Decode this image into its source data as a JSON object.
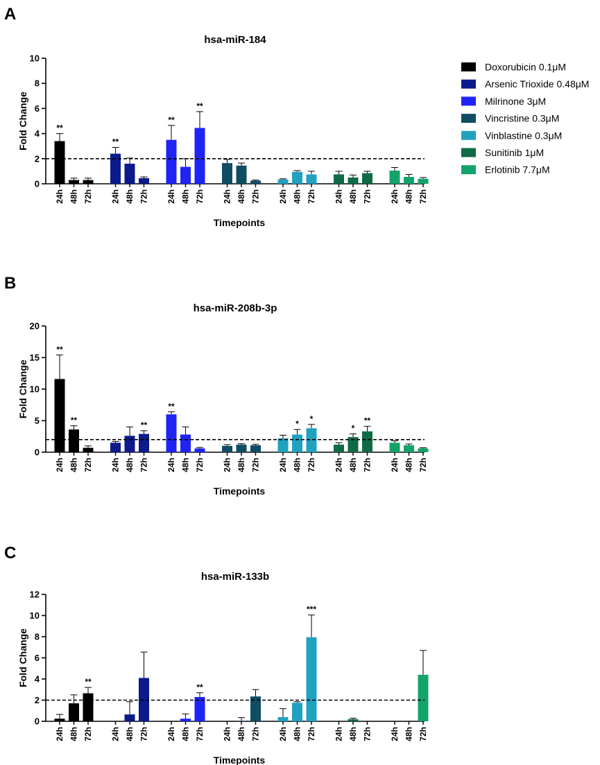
{
  "colors": {
    "Doxorubicin 0.1μM": "#000000",
    "Arsenic Trioxide 0.48μM": "#0c1a8c",
    "Milrinone 3μM": "#1f24f5",
    "Vincristine 0.3μM": "#0f4d63",
    "Vinblastine 0.3μM": "#21a1c0",
    "Sunitinib 1μM": "#0f6b45",
    "Erlotinib 7.7μM": "#13a36a"
  },
  "legend": [
    "Doxorubicin 0.1μM",
    "Arsenic Trioxide 0.48μM",
    "Milrinone 3μM",
    "Vincristine 0.3μM",
    "Vinblastine 0.3μM",
    "Sunitinib 1μM",
    "Erlotinib 7.7μM"
  ],
  "chart_data": [
    {
      "panel": "A",
      "type": "bar",
      "title": "hsa-miR-184",
      "xlabel": "Timepoints",
      "ylabel": "Fold Change",
      "ylim": [
        0,
        10
      ],
      "yticks": [
        0,
        2,
        4,
        6,
        8,
        10
      ],
      "threshold": 2,
      "timepoints": [
        "24h",
        "48h",
        "72h"
      ],
      "series": [
        {
          "name": "Doxorubicin 0.1μM",
          "values": [
            3.4,
            0.3,
            0.3
          ],
          "errors": [
            0.6,
            0.15,
            0.15
          ],
          "sig": [
            "**",
            "",
            ""
          ]
        },
        {
          "name": "Arsenic Trioxide 0.48μM",
          "values": [
            2.4,
            1.6,
            0.45
          ],
          "errors": [
            0.5,
            0.45,
            0.1
          ],
          "sig": [
            "**",
            "",
            ""
          ]
        },
        {
          "name": "Milrinone 3μM",
          "values": [
            3.5,
            1.35,
            4.45
          ],
          "errors": [
            1.15,
            0.65,
            1.3
          ],
          "sig": [
            "**",
            "",
            "**"
          ]
        },
        {
          "name": "Vincristine 0.3μM",
          "values": [
            1.65,
            1.45,
            0.25
          ],
          "errors": [
            0.3,
            0.2,
            0.05
          ],
          "sig": [
            "",
            "",
            ""
          ]
        },
        {
          "name": "Vinblastine 0.3μM",
          "values": [
            0.35,
            0.95,
            0.75
          ],
          "errors": [
            0.05,
            0.1,
            0.25
          ],
          "sig": [
            "",
            "",
            ""
          ]
        },
        {
          "name": "Sunitinib 1μM",
          "values": [
            0.75,
            0.5,
            0.85
          ],
          "errors": [
            0.25,
            0.2,
            0.15
          ],
          "sig": [
            "",
            "",
            ""
          ]
        },
        {
          "name": "Erlotinib 7.7μM",
          "values": [
            1.05,
            0.55,
            0.4
          ],
          "errors": [
            0.25,
            0.2,
            0.1
          ],
          "sig": [
            "",
            "",
            ""
          ]
        }
      ]
    },
    {
      "panel": "B",
      "type": "bar",
      "title": "hsa-miR-208b-3p",
      "xlabel": "Timepoints",
      "ylabel": "Fold Change",
      "ylim": [
        0,
        20
      ],
      "yticks": [
        0,
        5,
        10,
        15,
        20
      ],
      "threshold": 2,
      "timepoints": [
        "24h",
        "48h",
        "72h"
      ],
      "series": [
        {
          "name": "Doxorubicin 0.1μM",
          "values": [
            11.6,
            3.6,
            0.7
          ],
          "errors": [
            3.8,
            0.6,
            0.3
          ],
          "sig": [
            "**",
            "**",
            ""
          ]
        },
        {
          "name": "Arsenic Trioxide 0.48μM",
          "values": [
            1.5,
            2.6,
            2.9
          ],
          "errors": [
            0.2,
            1.4,
            0.5
          ],
          "sig": [
            "",
            "",
            "**"
          ]
        },
        {
          "name": "Milrinone 3μM",
          "values": [
            6.0,
            2.8,
            0.6
          ],
          "errors": [
            0.4,
            1.2,
            0.15
          ],
          "sig": [
            "**",
            "",
            ""
          ]
        },
        {
          "name": "Vincristine 0.3μM",
          "values": [
            1.0,
            1.2,
            1.1
          ],
          "errors": [
            0.2,
            0.15,
            0.15
          ],
          "sig": [
            "",
            "",
            ""
          ]
        },
        {
          "name": "Vinblastine 0.3μM",
          "values": [
            2.2,
            2.8,
            3.8
          ],
          "errors": [
            0.5,
            0.8,
            0.6
          ],
          "sig": [
            "",
            "*",
            "*"
          ]
        },
        {
          "name": "Sunitinib 1μM",
          "values": [
            1.2,
            2.4,
            3.3
          ],
          "errors": [
            0.3,
            0.5,
            0.8
          ],
          "sig": [
            "",
            "*",
            "**"
          ]
        },
        {
          "name": "Erlotinib 7.7μM",
          "values": [
            1.5,
            1.1,
            0.6
          ],
          "errors": [
            0.3,
            0.2,
            0.1
          ],
          "sig": [
            "",
            "",
            ""
          ]
        }
      ]
    },
    {
      "panel": "C",
      "type": "bar",
      "title": "hsa-miR-133b",
      "xlabel": "Timepoints",
      "ylabel": "Fold Change",
      "ylim": [
        0,
        12
      ],
      "yticks": [
        0,
        2,
        4,
        6,
        8,
        10,
        12
      ],
      "threshold": 2,
      "timepoints": [
        "24h",
        "48h",
        "72h"
      ],
      "series": [
        {
          "name": "Doxorubicin 0.1μM",
          "values": [
            0.25,
            1.7,
            2.65
          ],
          "errors": [
            0.4,
            0.8,
            0.55
          ],
          "sig": [
            "",
            "",
            "**"
          ]
        },
        {
          "name": "Arsenic Trioxide 0.48μM",
          "values": [
            0,
            0.65,
            4.1
          ],
          "errors": [
            0,
            1.2,
            2.45
          ],
          "sig": [
            "",
            "",
            ""
          ]
        },
        {
          "name": "Milrinone 3μM",
          "values": [
            0,
            0.25,
            2.3
          ],
          "errors": [
            0,
            0.45,
            0.4
          ],
          "sig": [
            "",
            "",
            "**"
          ]
        },
        {
          "name": "Vincristine 0.3μM",
          "values": [
            0,
            0.05,
            2.35
          ],
          "errors": [
            0,
            0.3,
            0.65
          ],
          "sig": [
            "",
            "",
            ""
          ]
        },
        {
          "name": "Vinblastine 0.3μM",
          "values": [
            0.4,
            1.75,
            7.95
          ],
          "errors": [
            0.8,
            0.1,
            2.1
          ],
          "sig": [
            "",
            "",
            "***"
          ]
        },
        {
          "name": "Sunitinib 1μM",
          "values": [
            0,
            0.2,
            0
          ],
          "errors": [
            0,
            0.1,
            0
          ],
          "sig": [
            "",
            "",
            ""
          ]
        },
        {
          "name": "Erlotinib 7.7μM",
          "values": [
            0,
            0,
            4.4
          ],
          "errors": [
            0,
            0,
            2.3
          ],
          "sig": [
            "",
            "",
            ""
          ]
        }
      ]
    }
  ]
}
